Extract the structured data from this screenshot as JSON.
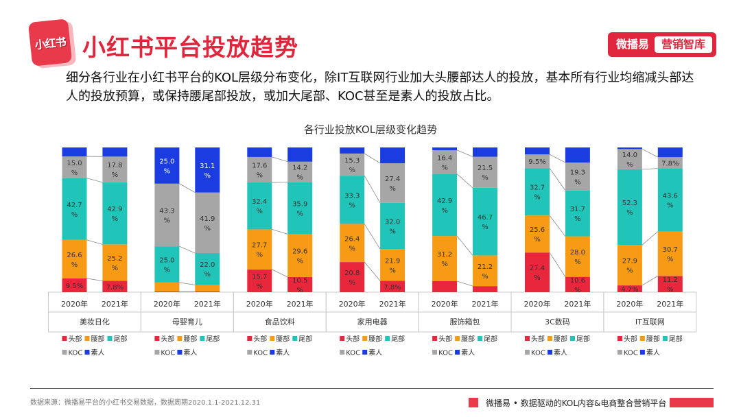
{
  "header": {
    "logo_text": "小红书",
    "title": "小红书平台投放趋势",
    "brand_left": "微播易",
    "brand_right": "营销智库"
  },
  "description": "细分各行业在小红书平台的KOL层级分布变化，除IT互联网行业加大头腰部达人的投放，基本所有行业均缩减头部达人的投放预算，或保持腰尾部投放，或加大尾部、KOC甚至是素人的投放占比。",
  "footer": {
    "source": "数据来源：微播易平台的小红书交易数据，数据周期2020.1.1-2021.12.31",
    "tagline": "微播易 • 数据驱动的KOL内容&电商整合营销平台"
  },
  "chart_data": {
    "type": "bar",
    "stacked": "100%",
    "title": "各行业投放KOL层级变化趋势",
    "years": [
      "2020年",
      "2021年"
    ],
    "series": [
      {
        "name": "头部",
        "color": "#e8263c"
      },
      {
        "name": "腰部",
        "color": "#f79a14"
      },
      {
        "name": "尾部",
        "color": "#20c4b8"
      },
      {
        "name": "KOC",
        "color": "#a6a6a6"
      },
      {
        "name": "素人",
        "color": "#1a3ce0"
      }
    ],
    "groups": [
      {
        "name": "美妆日化",
        "values": [
          [
            9.5,
            26.6,
            42.7,
            15.0,
            6.2
          ],
          [
            7.8,
            25.2,
            42.9,
            17.8,
            6.3
          ]
        ],
        "labels": [
          [
            "9.5%",
            "26.6 %",
            "42.7 %",
            "15.0 %",
            ""
          ],
          [
            "7.8%",
            "25.2 %",
            "42.9 %",
            "17.8 %",
            ""
          ]
        ]
      },
      {
        "name": "母婴育儿",
        "values": [
          [
            0.5,
            6.2,
            25.0,
            43.3,
            25.0
          ],
          [
            0.5,
            4.5,
            22.0,
            41.9,
            31.1
          ]
        ],
        "labels": [
          [
            "",
            "",
            "25.0 %",
            "43.3 %",
            "25.0 %"
          ],
          [
            "",
            "",
            "22.0 %",
            "41.9 %",
            "31.1 %"
          ]
        ]
      },
      {
        "name": "食品饮料",
        "values": [
          [
            15.7,
            27.7,
            32.4,
            17.6,
            6.6
          ],
          [
            10.5,
            29.6,
            35.9,
            14.2,
            9.8
          ]
        ],
        "labels": [
          [
            "15.7 %",
            "27.7 %",
            "32.4 %",
            "17.6 %",
            ""
          ],
          [
            "10.5 %",
            "29.6 %",
            "35.9 %",
            "14.2 %",
            ""
          ]
        ]
      },
      {
        "name": "家用电器",
        "values": [
          [
            20.8,
            26.4,
            33.3,
            15.3,
            4.2
          ],
          [
            7.8,
            21.9,
            32.0,
            27.4,
            10.9
          ]
        ],
        "labels": [
          [
            "20.8 %",
            "26.4 %",
            "33.3 %",
            "15.3 %",
            ""
          ],
          [
            "7.8%",
            "21.9 %",
            "32.0 %",
            "27.4 %",
            ""
          ]
        ]
      },
      {
        "name": "服饰箱包",
        "values": [
          [
            7.6,
            31.2,
            42.9,
            16.4,
            1.9
          ],
          [
            4.2,
            21.2,
            46.7,
            21.5,
            6.4
          ]
        ],
        "labels": [
          [
            "",
            "31.2 %",
            "42.9 %",
            "16.4 %",
            ""
          ],
          [
            "",
            "21.2 %",
            "46.7 %",
            "21.5 %",
            ""
          ]
        ]
      },
      {
        "name": "3C数码",
        "values": [
          [
            27.4,
            25.6,
            32.7,
            9.5,
            4.8
          ],
          [
            10.6,
            28.0,
            31.7,
            19.3,
            10.4
          ]
        ],
        "labels": [
          [
            "27.4 %",
            "25.6 %",
            "32.7 %",
            "9.5%",
            ""
          ],
          [
            "10.6 %",
            "28.0 %",
            "31.7 %",
            "19.3 %",
            ""
          ]
        ]
      },
      {
        "name": "IT互联网",
        "values": [
          [
            4.7,
            27.9,
            52.3,
            14.0,
            1.1
          ],
          [
            11.2,
            30.7,
            43.6,
            7.8,
            6.7
          ]
        ],
        "labels": [
          [
            "4.7%",
            "27.9 %",
            "52.3 %",
            "14.0 %",
            ""
          ],
          [
            "11.2 %",
            "30.7 %",
            "43.6 %",
            "7.8%",
            ""
          ]
        ]
      }
    ]
  }
}
